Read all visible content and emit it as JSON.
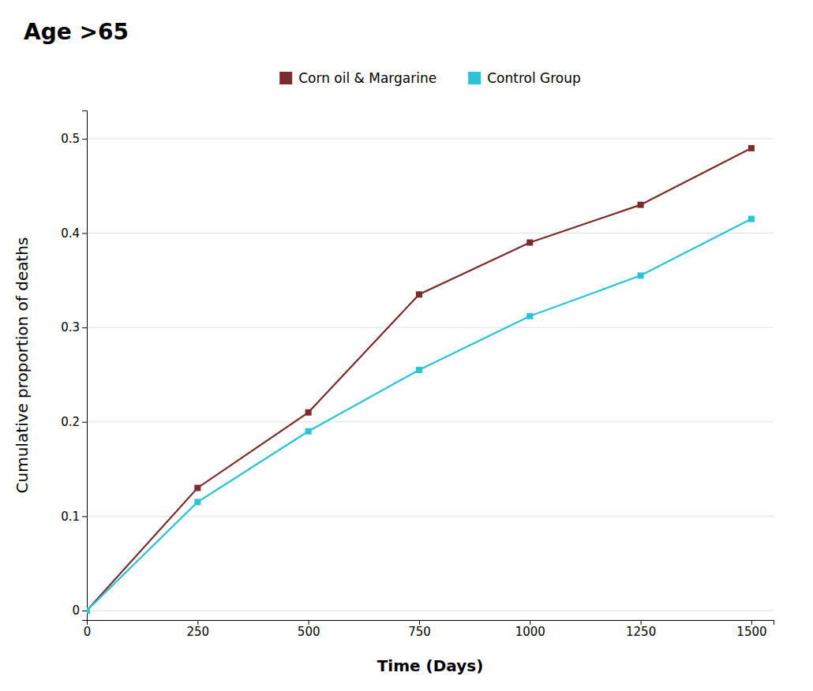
{
  "chart_data": {
    "type": "line",
    "title": "Age >65",
    "xlabel": "Time (Days)",
    "ylabel": "Cumulative proportion of deaths",
    "x": [
      0,
      250,
      500,
      750,
      1000,
      1250,
      1500
    ],
    "series": [
      {
        "name": "Corn oil & Margarine",
        "color": "#7B2B2B",
        "marker": "square",
        "values": [
          0.0,
          0.13,
          0.21,
          0.335,
          0.39,
          0.43,
          0.49
        ]
      },
      {
        "name": "Control Group",
        "color": "#29C4D8",
        "marker": "square",
        "values": [
          0.0,
          0.115,
          0.19,
          0.255,
          0.312,
          0.355,
          0.415
        ]
      }
    ],
    "xlim": [
      0,
      1550
    ],
    "ylim": [
      -0.01,
      0.53
    ],
    "xticks": [
      0,
      250,
      500,
      750,
      1000,
      1250,
      1500
    ],
    "yticks": [
      0,
      0.1,
      0.2,
      0.3,
      0.4,
      0.5
    ],
    "grid": true,
    "legend": "top"
  }
}
